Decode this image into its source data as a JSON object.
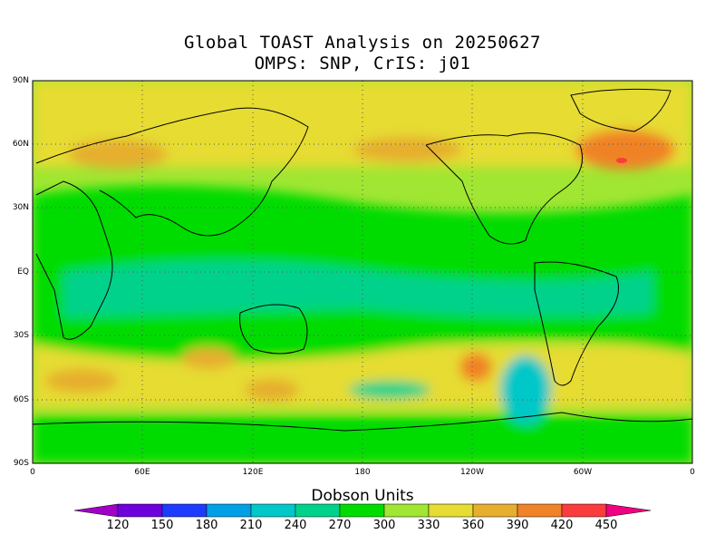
{
  "title_line1": "Global TOAST Analysis on 20250627",
  "title_line2": "OMPS: SNP, CrIS: j01",
  "lat_labels": [
    "90N",
    "60N",
    "30N",
    "EQ",
    "30S",
    "60S",
    "90S"
  ],
  "lon_labels": [
    "0",
    "60E",
    "120E",
    "180",
    "120W",
    "60W",
    "0"
  ],
  "colorbar": {
    "title": "Dobson Units",
    "levels": [
      "120",
      "150",
      "180",
      "210",
      "240",
      "270",
      "300",
      "330",
      "360",
      "390",
      "420",
      "450"
    ],
    "colors": [
      "#a000c8",
      "#6e00dc",
      "#1e3cff",
      "#00a0e6",
      "#00c8c8",
      "#00d28c",
      "#00dc00",
      "#a0e632",
      "#e6dc32",
      "#e6af2d",
      "#f08228",
      "#fa3c3c",
      "#f00082"
    ]
  },
  "map": {
    "background_color": "#a0e632",
    "grid_color": "#555555"
  }
}
